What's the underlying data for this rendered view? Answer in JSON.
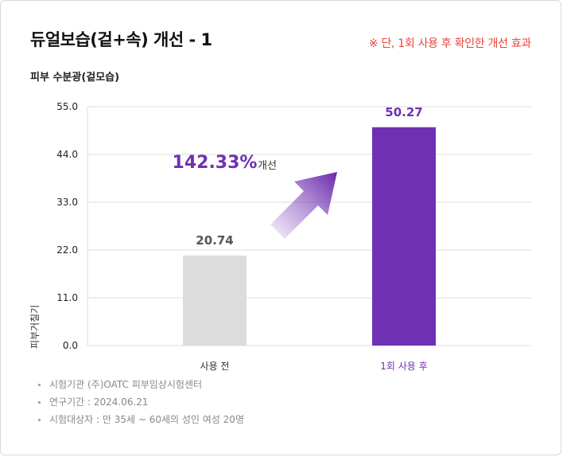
{
  "header": {
    "title": "듀얼보습(겉+속) 개선 - 1",
    "note": "※ 단, 1회 사용 후 확인한 개선 효과",
    "subtitle": "피부 수분광(겉모습)"
  },
  "colors": {
    "accent": "#7030b4",
    "before_bar": "#dcdcdc",
    "note": "#e8453c"
  },
  "chart_data": {
    "type": "bar",
    "ylabel": "피부거칠기",
    "ylim": [
      0,
      55
    ],
    "yticks": [
      "0.0",
      "11.0",
      "22.0",
      "33.0",
      "44.0",
      "55.0"
    ],
    "categories": [
      "사용 전",
      "1회 사용 후"
    ],
    "values": [
      20.74,
      50.27
    ],
    "value_labels": [
      "20.74",
      "50.27"
    ],
    "grid": true,
    "annotation": {
      "value": "142.33%",
      "text": "개선"
    }
  },
  "footnotes": [
    "시험기관 (주)OATC 피부임상시험센터",
    "연구기간 : 2024.06.21",
    "시험대상자 : 만 35세 ~ 60세의 성인 여성 20명"
  ]
}
